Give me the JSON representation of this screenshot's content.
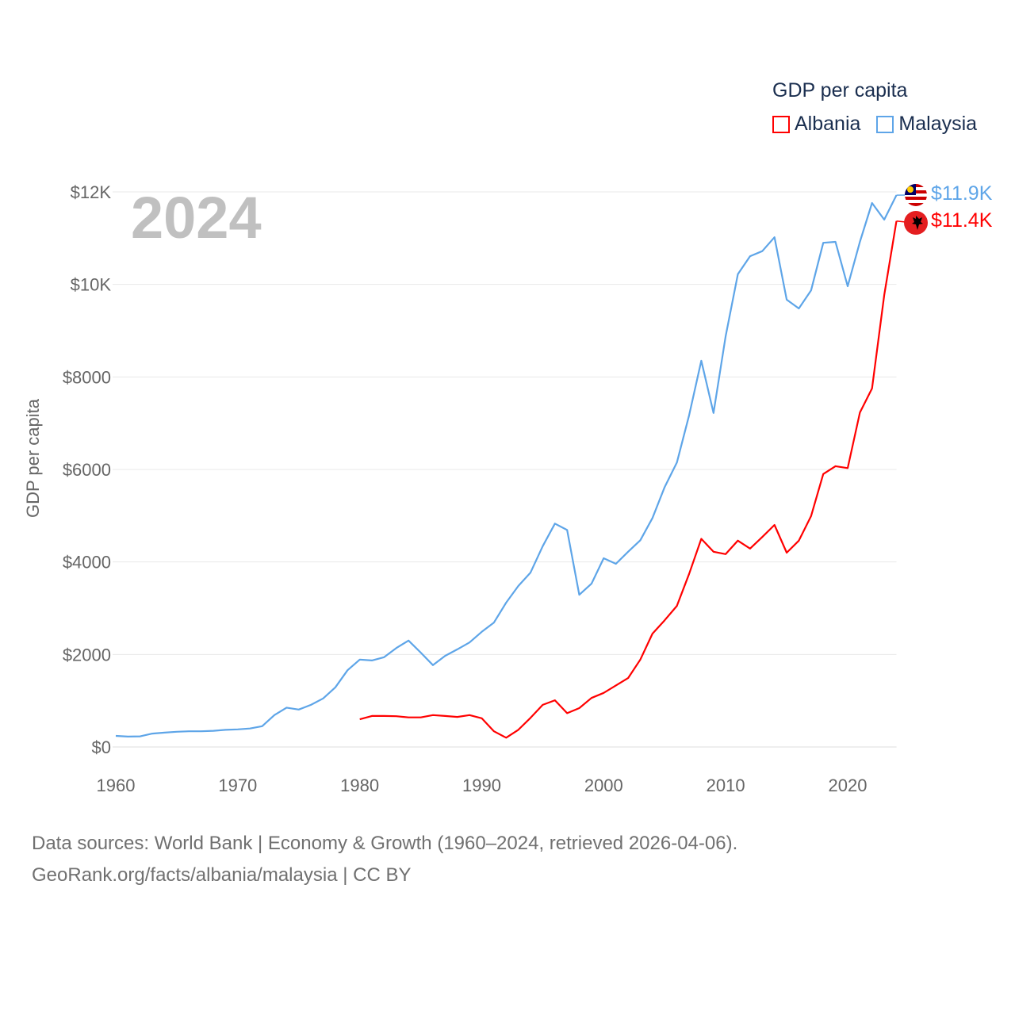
{
  "chart_data": {
    "type": "line",
    "title": "GDP per capita",
    "xlabel": "",
    "ylabel": "GDP per capita",
    "xlim": [
      1960,
      2024
    ],
    "ylim": [
      0,
      12000
    ],
    "grid": true,
    "legend_position": "top-right",
    "x_ticks": [
      1960,
      1970,
      1980,
      1990,
      2000,
      2010,
      2020
    ],
    "x_tick_labels": [
      "1960",
      "1970",
      "1980",
      "1990",
      "2000",
      "2010",
      "2020"
    ],
    "y_ticks": [
      0,
      2000,
      4000,
      6000,
      8000,
      10000,
      12000
    ],
    "y_tick_labels": [
      "$0",
      "$2000",
      "$4000",
      "$6000",
      "$8000",
      "$10K",
      "$12K"
    ],
    "current_year": "2024",
    "series": [
      {
        "name": "Albania",
        "color": "#ff0000",
        "flag": "albania-flag",
        "end_label": "$11.4K",
        "start_year": 1980,
        "values": [
          600,
          670,
          670,
          665,
          640,
          640,
          690,
          670,
          650,
          690,
          620,
          340,
          200,
          370,
          630,
          910,
          1010,
          730,
          840,
          1060,
          1170,
          1330,
          1490,
          1890,
          2450,
          2740,
          3050,
          3740,
          4500,
          4220,
          4170,
          4460,
          4290,
          4540,
          4800,
          4200,
          4460,
          4990,
          5900,
          6070,
          6030,
          7230,
          7750,
          9770,
          11370
        ]
      },
      {
        "name": "Malaysia",
        "color": "#5ea5e8",
        "flag": "malaysia-flag",
        "end_label": "$11.9K",
        "start_year": 1960,
        "values": [
          240,
          225,
          230,
          290,
          310,
          330,
          340,
          340,
          350,
          370,
          380,
          400,
          450,
          690,
          850,
          810,
          910,
          1050,
          1290,
          1660,
          1890,
          1870,
          1940,
          2140,
          2300,
          2040,
          1770,
          1970,
          2110,
          2260,
          2490,
          2690,
          3120,
          3480,
          3770,
          4340,
          4830,
          4690,
          3290,
          3530,
          4080,
          3960,
          4220,
          4470,
          4950,
          5620,
          6150,
          7170,
          8350,
          7220,
          8880,
          10220,
          10610,
          10720,
          11020,
          9670,
          9480,
          9870,
          10900,
          10920,
          9960,
          10920,
          11760,
          11400,
          11930
        ]
      }
    ]
  },
  "legend": {
    "title": "GDP per capita",
    "items": [
      "Albania",
      "Malaysia"
    ]
  },
  "footer": {
    "line1": "Data sources: World Bank | Economy & Growth (1960–2024, retrieved 2026-04-06).",
    "line2": "GeoRank.org/facts/albania/malaysia | CC BY"
  }
}
